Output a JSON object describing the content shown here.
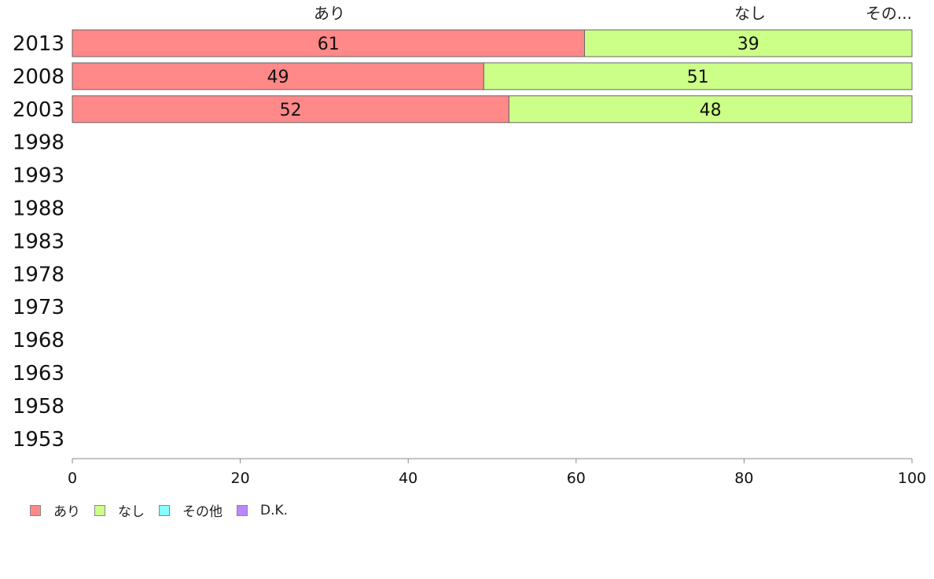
{
  "chart_data": {
    "type": "bar",
    "orientation": "horizontal",
    "stacked": true,
    "categories": [
      "2013",
      "2008",
      "2003",
      "1998",
      "1993",
      "1988",
      "1983",
      "1978",
      "1973",
      "1968",
      "1963",
      "1958",
      "1953"
    ],
    "series": [
      {
        "name": "あり",
        "color": "#ff8888",
        "values": [
          61,
          49,
          52,
          null,
          null,
          null,
          null,
          null,
          null,
          null,
          null,
          null,
          null
        ]
      },
      {
        "name": "なし",
        "color": "#ccff88",
        "values": [
          39,
          51,
          48,
          null,
          null,
          null,
          null,
          null,
          null,
          null,
          null,
          null,
          null
        ]
      },
      {
        "name": "その他",
        "color": "#88ffff",
        "values": [
          0,
          0,
          0,
          null,
          null,
          null,
          null,
          null,
          null,
          null,
          null,
          null,
          null
        ]
      },
      {
        "name": "D.K.",
        "color": "#bb88ff",
        "values": [
          0,
          0,
          0,
          null,
          null,
          null,
          null,
          null,
          null,
          null,
          null,
          null,
          null
        ]
      }
    ],
    "top_labels": [
      "あり",
      "なし",
      "その..."
    ],
    "xlim": [
      0,
      100
    ],
    "xticks": [
      0,
      20,
      40,
      60,
      80,
      100
    ],
    "legend_position": "bottom-left",
    "grid": false
  }
}
